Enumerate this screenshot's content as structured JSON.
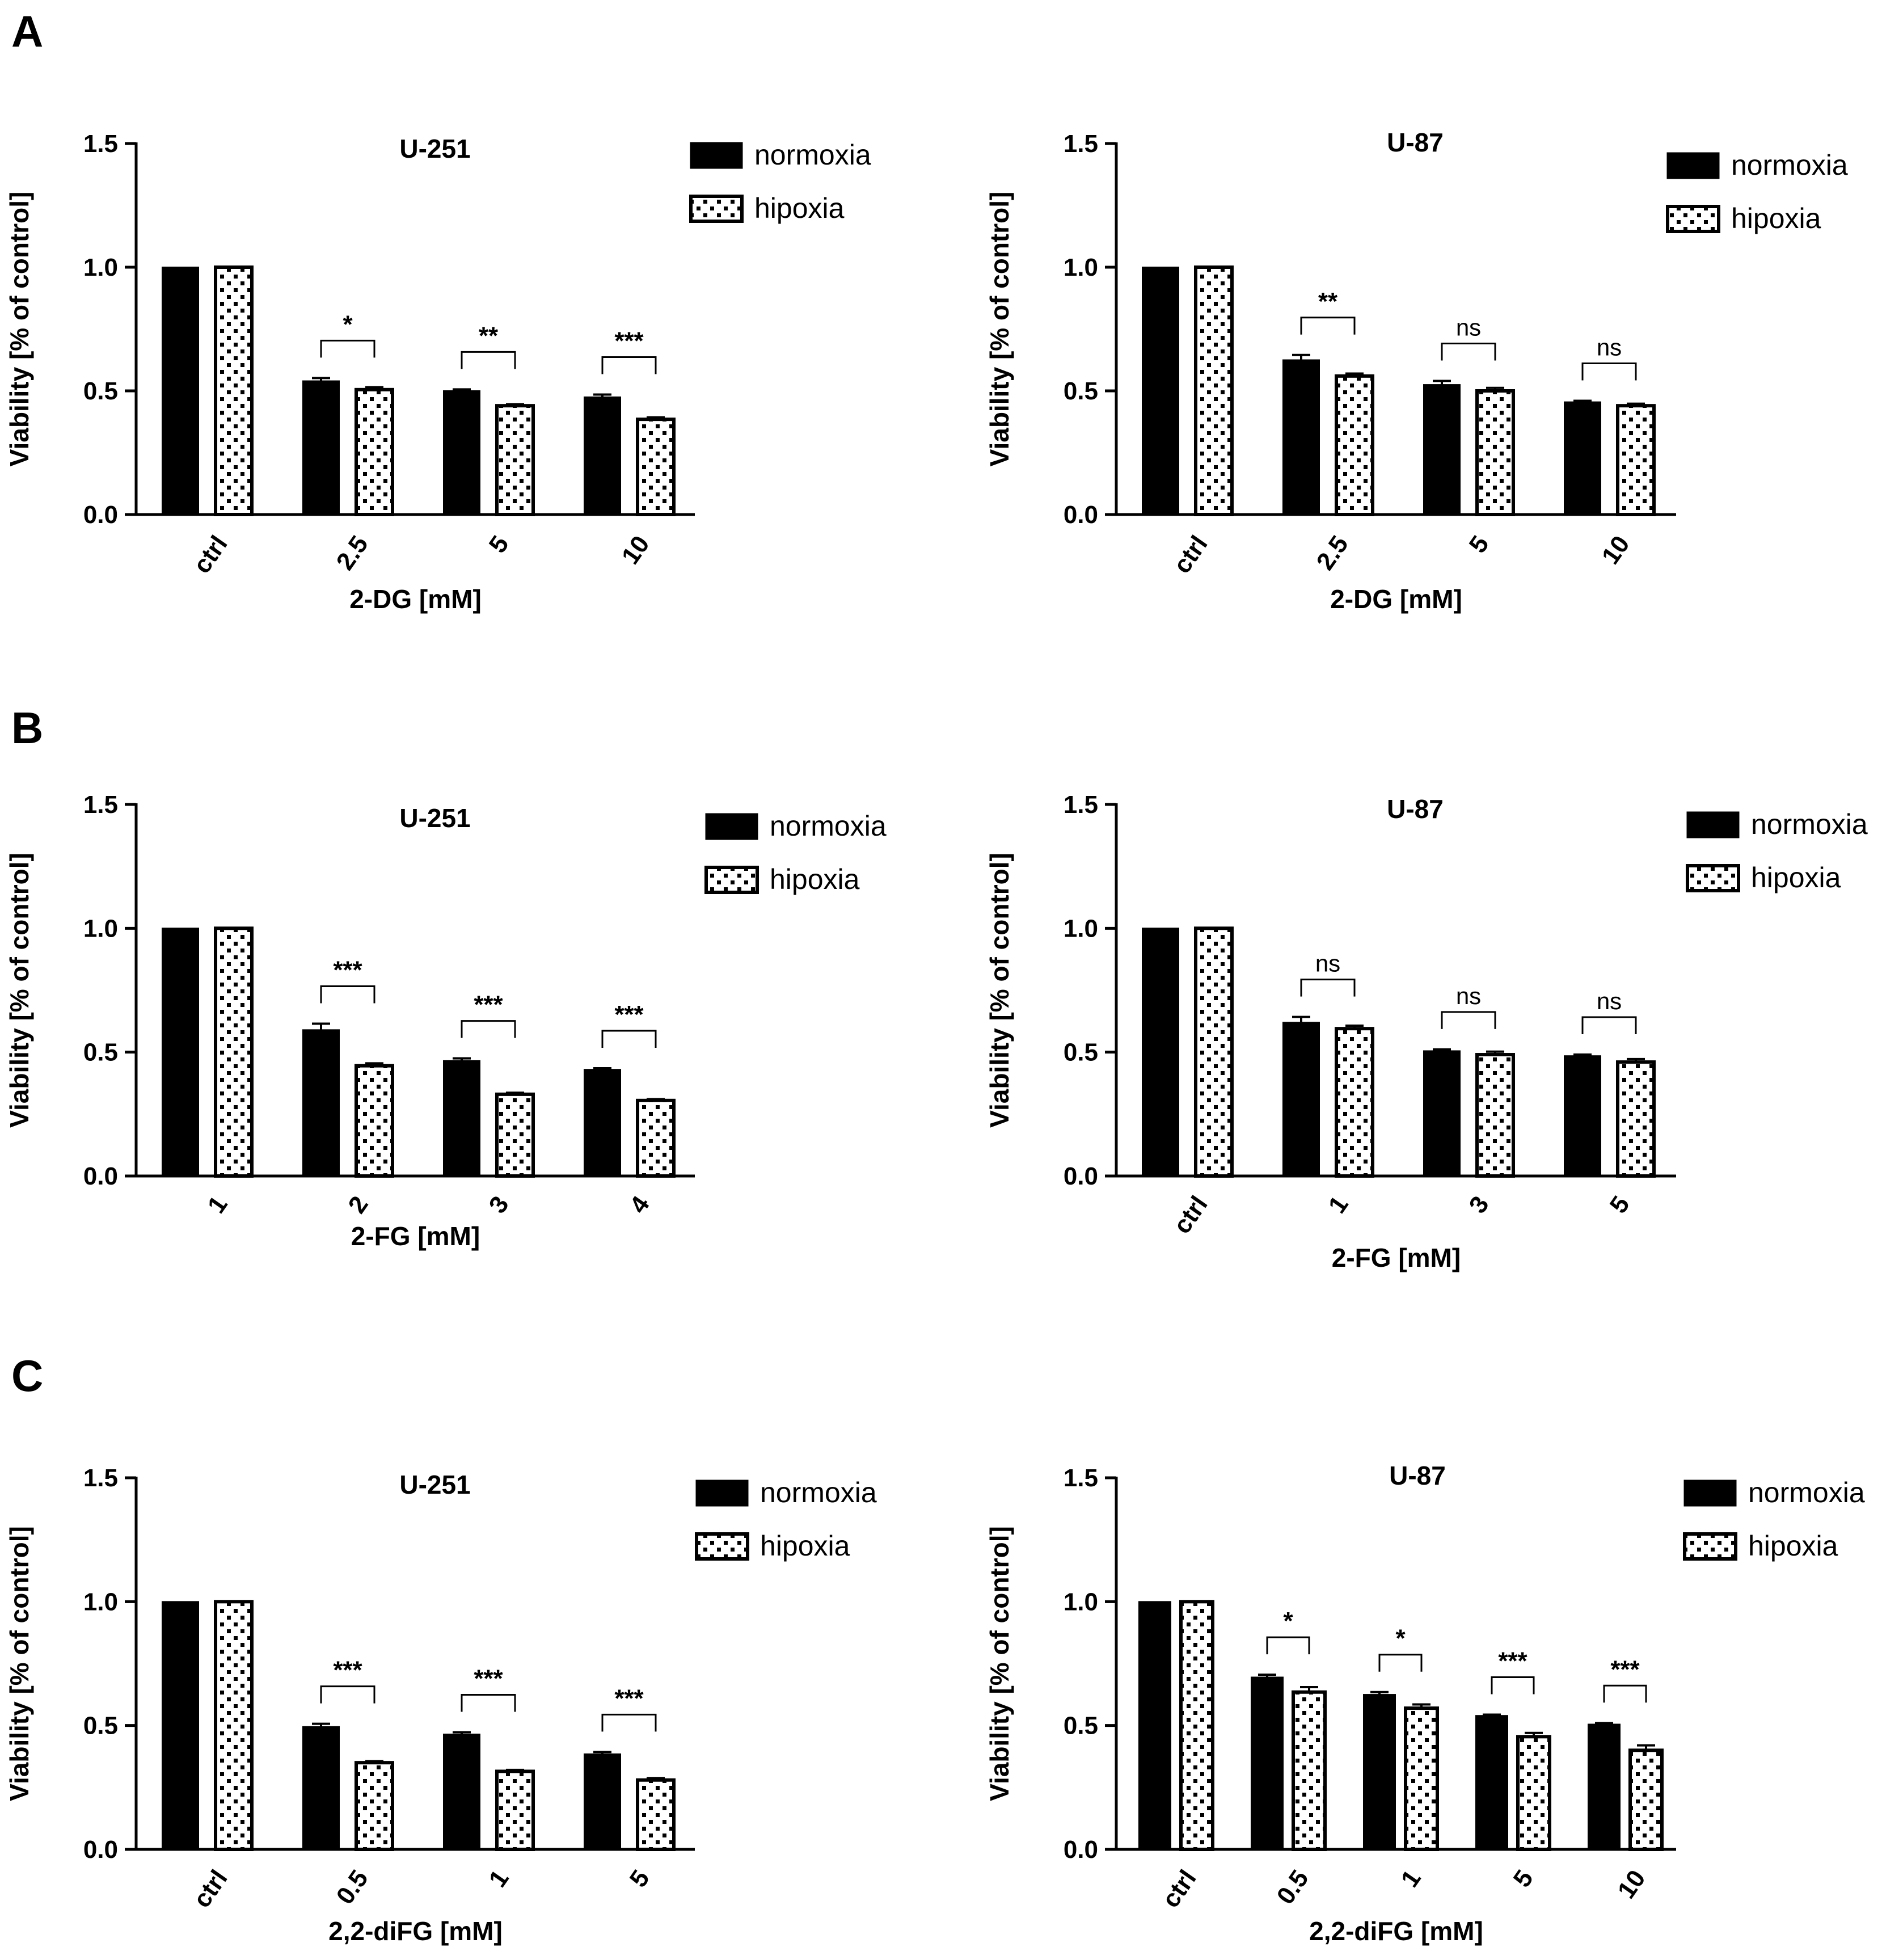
{
  "panels": [
    "A",
    "B",
    "C"
  ],
  "legend": {
    "normoxia": "normoxia",
    "hypoxia": "hipoxia"
  },
  "colors": {
    "normoxia": "#000000",
    "hypoxia_fill": "#ffffff",
    "stroke": "#000000"
  },
  "chart_data": [
    {
      "panel": "A",
      "type": "bar",
      "title": "U-251",
      "xlabel": "2-DG [mM]",
      "ylabel": "Viability [% of control]",
      "ylim": [
        0,
        1.5
      ],
      "yticks": [
        "0.0",
        "0.5",
        "1.0",
        "1.5"
      ],
      "categories": [
        "ctrl",
        "2.5",
        "5",
        "10"
      ],
      "rotated_ticks": true,
      "series": [
        {
          "name": "normoxia",
          "values": [
            1.0,
            0.54,
            0.5,
            0.475
          ],
          "errors": [
            0,
            0.012,
            0.006,
            0.01
          ]
        },
        {
          "name": "hipoxia",
          "values": [
            1.0,
            0.505,
            0.44,
            0.385
          ],
          "errors": [
            0,
            0.01,
            0.006,
            0.008
          ]
        }
      ],
      "significance": [
        "",
        "*",
        "**",
        "***"
      ],
      "legend_position": "top-right"
    },
    {
      "panel": "A",
      "type": "bar",
      "title": "U-87",
      "xlabel": "2-DG [mM]",
      "ylabel": "Viability [% of control]",
      "ylim": [
        0,
        1.5
      ],
      "yticks": [
        "0.0",
        "0.5",
        "1.0",
        "1.5"
      ],
      "categories": [
        "ctrl",
        "2.5",
        "5",
        "10"
      ],
      "rotated_ticks": true,
      "series": [
        {
          "name": "normoxia",
          "values": [
            1.0,
            0.625,
            0.525,
            0.455
          ],
          "errors": [
            0,
            0.02,
            0.015,
            0.005
          ]
        },
        {
          "name": "hipoxia",
          "values": [
            1.0,
            0.56,
            0.5,
            0.44
          ],
          "errors": [
            0,
            0.01,
            0.012,
            0.008
          ]
        }
      ],
      "significance": [
        "",
        "**",
        "ns",
        "ns"
      ],
      "legend_position": "top-right"
    },
    {
      "panel": "B",
      "type": "bar",
      "title": "U-251",
      "xlabel": "2-FG [mM]",
      "ylabel": "Viability [% of control]",
      "ylim": [
        0,
        1.5
      ],
      "yticks": [
        "0.0",
        "0.5",
        "1.0",
        "1.5"
      ],
      "categories": [
        "1",
        "2",
        "3",
        "4"
      ],
      "rotated_ticks": true,
      "series": [
        {
          "name": "normoxia",
          "values": [
            1.0,
            0.59,
            0.465,
            0.43
          ],
          "errors": [
            0,
            0.025,
            0.01,
            0.005
          ]
        },
        {
          "name": "hipoxia",
          "values": [
            1.0,
            0.445,
            0.33,
            0.305
          ],
          "errors": [
            0,
            0.01,
            0.006,
            0.005
          ]
        }
      ],
      "significance": [
        "",
        "***",
        "***",
        "***"
      ],
      "legend_position": "top-right"
    },
    {
      "panel": "B",
      "type": "bar",
      "title": "U-87",
      "xlabel": "2-FG [mM]",
      "ylabel": "Viability [% of control]",
      "ylim": [
        0,
        1.5
      ],
      "yticks": [
        "0.0",
        "0.5",
        "1.0",
        "1.5"
      ],
      "categories": [
        "ctrl",
        "1",
        "3",
        "5"
      ],
      "rotated_ticks": true,
      "series": [
        {
          "name": "normoxia",
          "values": [
            1.0,
            0.62,
            0.505,
            0.485
          ],
          "errors": [
            0,
            0.022,
            0.006,
            0.005
          ]
        },
        {
          "name": "hipoxia",
          "values": [
            1.0,
            0.595,
            0.49,
            0.46
          ],
          "errors": [
            0,
            0.012,
            0.012,
            0.012
          ]
        }
      ],
      "significance": [
        "",
        "ns",
        "ns",
        "ns"
      ],
      "legend_position": "top-right"
    },
    {
      "panel": "C",
      "type": "bar",
      "title": "U-251",
      "xlabel": "2,2-diFG [mM]",
      "ylabel": "Viability [% of control]",
      "ylim": [
        0,
        1.5
      ],
      "yticks": [
        "0.0",
        "0.5",
        "1.0",
        "1.5"
      ],
      "categories": [
        "ctrl",
        "0.5",
        "1",
        "5"
      ],
      "rotated_ticks": true,
      "series": [
        {
          "name": "normoxia",
          "values": [
            1.0,
            0.495,
            0.465,
            0.385
          ],
          "errors": [
            0,
            0.012,
            0.008,
            0.008
          ]
        },
        {
          "name": "hipoxia",
          "values": [
            1.0,
            0.35,
            0.315,
            0.28
          ],
          "errors": [
            0,
            0.006,
            0.006,
            0.008
          ]
        }
      ],
      "significance": [
        "",
        "***",
        "***",
        "***"
      ],
      "legend_position": "top-right"
    },
    {
      "panel": "C",
      "type": "bar",
      "title": "U-87",
      "xlabel": "2,2-diFG [mM]",
      "ylabel": "Viability [% of control]",
      "ylim": [
        0,
        1.5
      ],
      "yticks": [
        "0.0",
        "0.5",
        "1.0",
        "1.5"
      ],
      "categories": [
        "ctrl",
        "0.5",
        "1",
        "5",
        "10"
      ],
      "rotated_ticks": true,
      "series": [
        {
          "name": "normoxia",
          "values": [
            1.0,
            0.695,
            0.625,
            0.54,
            0.505
          ],
          "errors": [
            0,
            0.01,
            0.01,
            0.004,
            0.005
          ]
        },
        {
          "name": "hipoxia",
          "values": [
            1.0,
            0.635,
            0.57,
            0.455,
            0.4
          ],
          "errors": [
            0,
            0.02,
            0.015,
            0.015,
            0.02
          ]
        }
      ],
      "significance": [
        "",
        "*",
        "*",
        "***",
        "***"
      ],
      "legend_position": "top-right"
    }
  ]
}
